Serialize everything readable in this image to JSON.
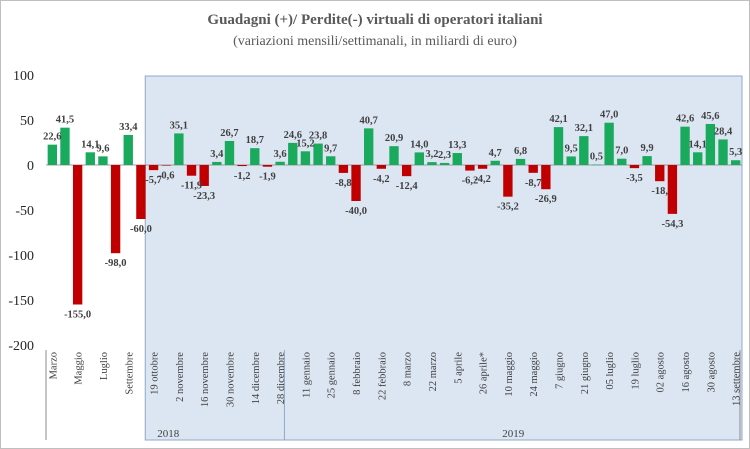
{
  "chart_data": {
    "type": "bar",
    "title": "Guadagni (+)/ Perdite(-) virtuali di operatori italiani",
    "subtitle": "(variazioni mensili/settimanali, in miliardi di euro)",
    "ylim": [
      -200,
      100
    ],
    "yticks": [
      100,
      50,
      0,
      -50,
      -100,
      -150,
      -200
    ],
    "grid": false,
    "legend": "none",
    "colors": {
      "positive": "#1aaa5e",
      "negative": "#c00000",
      "highlight_band": "#dce6f2",
      "border": "#8ea9c8"
    },
    "values": [
      22.6,
      41.5,
      -155.0,
      14.1,
      9.6,
      -98.0,
      33.4,
      -60.0,
      -5.7,
      -0.6,
      35.1,
      -11.9,
      -23.3,
      3.4,
      26.7,
      -1.2,
      18.7,
      -1.9,
      3.6,
      24.6,
      15.2,
      23.8,
      9.7,
      -8.8,
      -40.0,
      40.7,
      -4.2,
      20.9,
      -12.4,
      14.0,
      3.2,
      2.3,
      13.3,
      -6.2,
      -4.2,
      4.7,
      -35.2,
      6.8,
      -8.7,
      -26.9,
      42.1,
      9.5,
      32.1,
      0.5,
      47.0,
      7.0,
      -3.5,
      9.9,
      -18.0,
      -54.3,
      42.6,
      14.1,
      45.6,
      28.4,
      5.3
    ],
    "value_labels": [
      "22,6",
      "41,5",
      "-155,0",
      "14,1",
      "9,6",
      "-98,0",
      "33,4",
      "-60,0",
      "-5,7",
      "-0,6",
      "35,1",
      "-11,9",
      "-23,3",
      "3,4",
      "26,7",
      "-1,2",
      "18,7",
      "-1,9",
      "3,6",
      "24,6",
      "15,2",
      "23,8",
      "9,7",
      "-8,8",
      "-40,0",
      "40,7",
      "-4,2",
      "20,9",
      "-12,4",
      "14,0",
      "3,2",
      "2,3",
      "13,3",
      "-6,2",
      "-4,2",
      "4,7",
      "-35,2",
      "6,8",
      "-8,7",
      "-26,9",
      "42,1",
      "9,5",
      "32,1",
      "0,5",
      "47,0",
      "7,0",
      "-3,5",
      "9,9",
      "-18,",
      "-54,3",
      "42,6",
      "14,1",
      "45,6",
      "28,4",
      "5,3"
    ],
    "category_labels": [
      {
        "i": 0,
        "label": "Marzo"
      },
      {
        "i": 2,
        "label": "Maggio"
      },
      {
        "i": 4,
        "label": "Luglio"
      },
      {
        "i": 6,
        "label": "Settembre"
      },
      {
        "i": 8,
        "label": "19 ottobre"
      },
      {
        "i": 10,
        "label": "2 novembre"
      },
      {
        "i": 12,
        "label": "16 novembre"
      },
      {
        "i": 14,
        "label": "30 novembre"
      },
      {
        "i": 16,
        "label": "14 dicembre"
      },
      {
        "i": 18,
        "label": "28 dicembre"
      },
      {
        "i": 20,
        "label": "11 gennaio"
      },
      {
        "i": 22,
        "label": "25 gennaio"
      },
      {
        "i": 24,
        "label": "8 febbraio"
      },
      {
        "i": 26,
        "label": "22 febbraio"
      },
      {
        "i": 28,
        "label": "8 marzo"
      },
      {
        "i": 30,
        "label": "22 marzo"
      },
      {
        "i": 32,
        "label": "5 aprile"
      },
      {
        "i": 34,
        "label": "26 aprile*"
      },
      {
        "i": 36,
        "label": "10 maggio"
      },
      {
        "i": 38,
        "label": "24 maggio"
      },
      {
        "i": 40,
        "label": "7 giugno"
      },
      {
        "i": 42,
        "label": "21 giugno"
      },
      {
        "i": 44,
        "label": "05 luglio"
      },
      {
        "i": 46,
        "label": "19 luglio"
      },
      {
        "i": 48,
        "label": "02 agosto"
      },
      {
        "i": 50,
        "label": "16 agosto"
      },
      {
        "i": 52,
        "label": "30 agosto"
      },
      {
        "i": 54,
        "label": "13 settembre"
      }
    ],
    "year_labels": [
      {
        "label": "2018",
        "from": 8,
        "to": 18
      },
      {
        "label": "2019",
        "from": 19,
        "to": 54
      }
    ],
    "highlight_from_index": 8
  }
}
